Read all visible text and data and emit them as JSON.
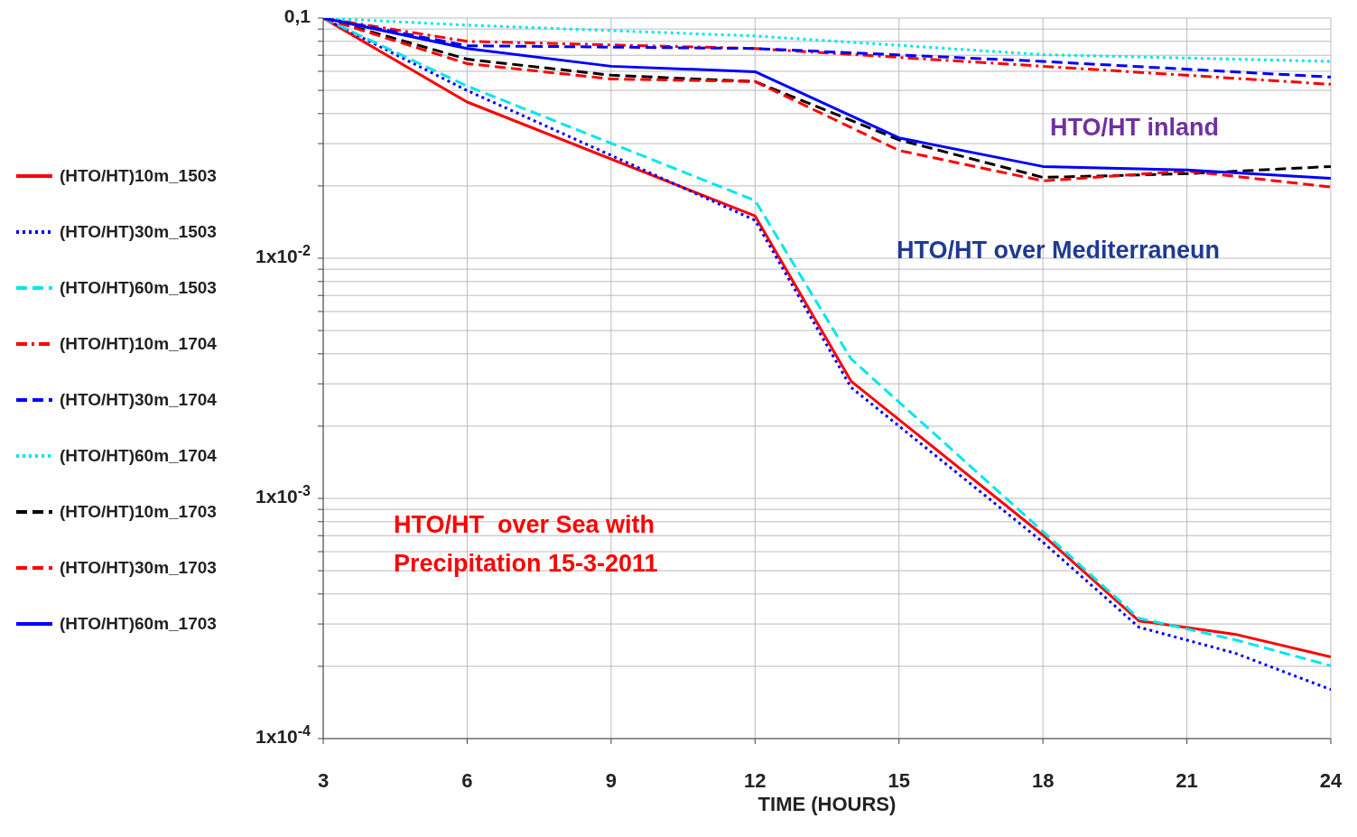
{
  "chart_data": {
    "type": "line",
    "xlabel": "TIME (HOURS)",
    "log": "y",
    "grid": true,
    "legend": "left",
    "marker": "none",
    "xlim": [
      3,
      24
    ],
    "xticks": [
      3,
      6,
      9,
      12,
      15,
      18,
      21,
      24
    ],
    "ylim": [
      0.0001,
      0.1
    ],
    "yticks": [
      {
        "value": 0.1,
        "label": "0,1"
      },
      {
        "value": 0.01,
        "label": "1x10$^{-2}$"
      },
      {
        "value": 0.001,
        "label": "1x10$^{-3}$"
      },
      {
        "value": 0.0001,
        "label": "1x10$^{-4}$"
      },
      {
        "value": 0.0002,
        "label": null
      },
      {
        "value": 0.0003,
        "label": null
      },
      {
        "value": 0.0004,
        "label": null
      },
      {
        "value": 0.0005,
        "label": null
      },
      {
        "value": 0.0006,
        "label": null
      },
      {
        "value": 0.0007,
        "label": null
      },
      {
        "value": 0.0008,
        "label": null
      },
      {
        "value": 0.0009,
        "label": null
      },
      {
        "value": 0.002,
        "label": null
      },
      {
        "value": 0.003,
        "label": null
      },
      {
        "value": 0.004,
        "label": null
      },
      {
        "value": 0.005,
        "label": null
      },
      {
        "value": 0.006,
        "label": null
      },
      {
        "value": 0.007,
        "label": null
      },
      {
        "value": 0.008,
        "label": null
      },
      {
        "value": 0.009,
        "label": null
      },
      {
        "value": 0.02,
        "label": null
      },
      {
        "value": 0.03,
        "label": null
      },
      {
        "value": 0.04,
        "label": null
      },
      {
        "value": 0.05,
        "label": null
      },
      {
        "value": 0.06,
        "label": null
      },
      {
        "value": 0.07,
        "label": null
      },
      {
        "value": 0.08,
        "label": null
      },
      {
        "value": 0.09,
        "label": null
      }
    ],
    "annotations": [
      "HTO/HT inland",
      "HTO/HT over Mediterraneun",
      "HTO/HT  over Sea with Precipitation 15-3-2011"
    ],
    "series": [
      {
        "name": "(HTO/HT)10m_1503",
        "color": "#ff0000",
        "line_style": "solid",
        "x": [
          3,
          6,
          12,
          14,
          18,
          20,
          22,
          24
        ],
        "values": [
          0.1,
          0.0447,
          0.015,
          0.00308,
          0.000703,
          0.000309,
          0.000272,
          0.000219
        ]
      },
      {
        "name": "(HTO/HT)30m_1503",
        "color": "#0000ff",
        "line_style": "dotted",
        "x": [
          3,
          6,
          12,
          14,
          18,
          20,
          22,
          24
        ],
        "values": [
          0.1,
          0.0499,
          0.0144,
          0.0029,
          0.000657,
          0.000291,
          0.000227,
          0.00016
        ]
      },
      {
        "name": "(HTO/HT)60m_1503",
        "color": "#00e5ee",
        "line_style": "dashed",
        "x": [
          3,
          6,
          12,
          14,
          18,
          20,
          22,
          24
        ],
        "values": [
          0.1,
          0.0521,
          0.0174,
          0.00381,
          0.000728,
          0.000317,
          0.000258,
          0.000201
        ]
      },
      {
        "name": "(HTO/HT)10m_1704",
        "color": "#ff0000",
        "line_style": "dashdot",
        "x": [
          3,
          6,
          12,
          18,
          24
        ],
        "values": [
          0.1,
          0.08,
          0.0747,
          0.063,
          0.053
        ]
      },
      {
        "name": "(HTO/HT)30m_1704",
        "color": "#0000ff",
        "line_style": "dashed",
        "x": [
          3,
          6,
          12,
          18,
          24
        ],
        "values": [
          0.1,
          0.0767,
          0.0747,
          0.066,
          0.0568
        ]
      },
      {
        "name": "(HTO/HT)60m_1704",
        "color": "#00e5ee",
        "line_style": "dotted",
        "x": [
          3,
          6,
          12,
          18,
          24
        ],
        "values": [
          0.1,
          0.0934,
          0.0842,
          0.0704,
          0.066
        ]
      },
      {
        "name": "(HTO/HT)10m_1703",
        "color": "#000000",
        "line_style": "dashed",
        "x": [
          3,
          6,
          9,
          12,
          15,
          18,
          21,
          24
        ],
        "values": [
          0.1,
          0.0674,
          0.0578,
          0.0544,
          0.0311,
          0.0217,
          0.0225,
          0.0241
        ]
      },
      {
        "name": "(HTO/HT)30m_1703",
        "color": "#ff0000",
        "line_style": "dashed",
        "x": [
          3,
          6,
          9,
          12,
          15,
          18,
          21,
          24
        ],
        "values": [
          0.1,
          0.0646,
          0.0558,
          0.0544,
          0.0281,
          0.021,
          0.0231,
          0.0198
        ]
      },
      {
        "name": "(HTO/HT)60m_1703",
        "color": "#0000ff",
        "line_style": "solid",
        "x": [
          3,
          6,
          9,
          12,
          15,
          18,
          21,
          24
        ],
        "values": [
          0.1,
          0.0747,
          0.063,
          0.0598,
          0.0317,
          0.0241,
          0.0233,
          0.0215
        ]
      }
    ]
  }
}
